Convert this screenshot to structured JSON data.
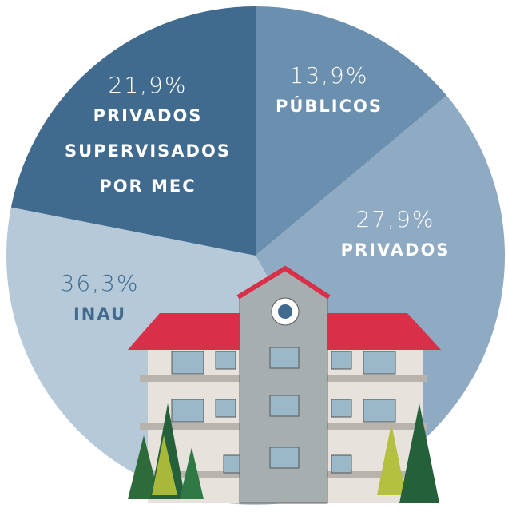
{
  "chart_data": {
    "type": "pie",
    "categories": [
      "PÚBLICOS",
      "PRIVADOS",
      "INAU",
      "PRIVADOS SUPERVISADOS POR MEC"
    ],
    "values": [
      13.9,
      27.9,
      36.3,
      21.9
    ],
    "value_labels": [
      "13,9%",
      "27,9%",
      "36,3%",
      "21,9%"
    ],
    "colors": [
      "#6b8fae",
      "#8fabc3",
      "#b5c9d8",
      "#406b8e"
    ]
  }
}
